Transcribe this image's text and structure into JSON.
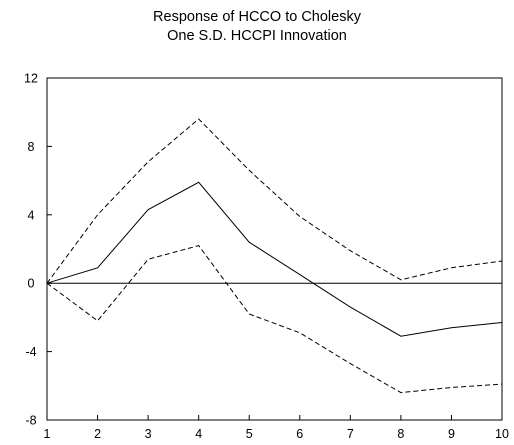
{
  "chart_data": {
    "type": "line",
    "title": "Response of HCCO to Cholesky",
    "subtitle": "One S.D. HCCPI Innovation",
    "xlabel": "",
    "ylabel": "",
    "x": [
      1,
      2,
      3,
      4,
      5,
      6,
      7,
      8,
      9,
      10
    ],
    "xlim": [
      1,
      10
    ],
    "ylim": [
      -8,
      12
    ],
    "yticks": [
      -8,
      -4,
      0,
      4,
      8,
      12
    ],
    "xticks": [
      1,
      2,
      3,
      4,
      5,
      6,
      7,
      8,
      9,
      10
    ],
    "zero_line": true,
    "legend": "none",
    "grid": false,
    "series": [
      {
        "style": "solid",
        "color": "#000000",
        "values": [
          0.0,
          0.9,
          4.3,
          5.9,
          2.4,
          0.5,
          -1.4,
          -3.1,
          -2.6,
          -2.3
        ]
      },
      {
        "style": "dashed",
        "color": "#000000",
        "values": [
          0.0,
          4.0,
          7.1,
          9.6,
          6.6,
          3.9,
          1.9,
          0.2,
          0.9,
          1.3
        ]
      },
      {
        "style": "dashed",
        "color": "#000000",
        "values": [
          0.0,
          -2.2,
          1.4,
          2.2,
          -1.8,
          -2.9,
          -4.7,
          -6.4,
          -6.1,
          -5.9
        ]
      }
    ]
  }
}
